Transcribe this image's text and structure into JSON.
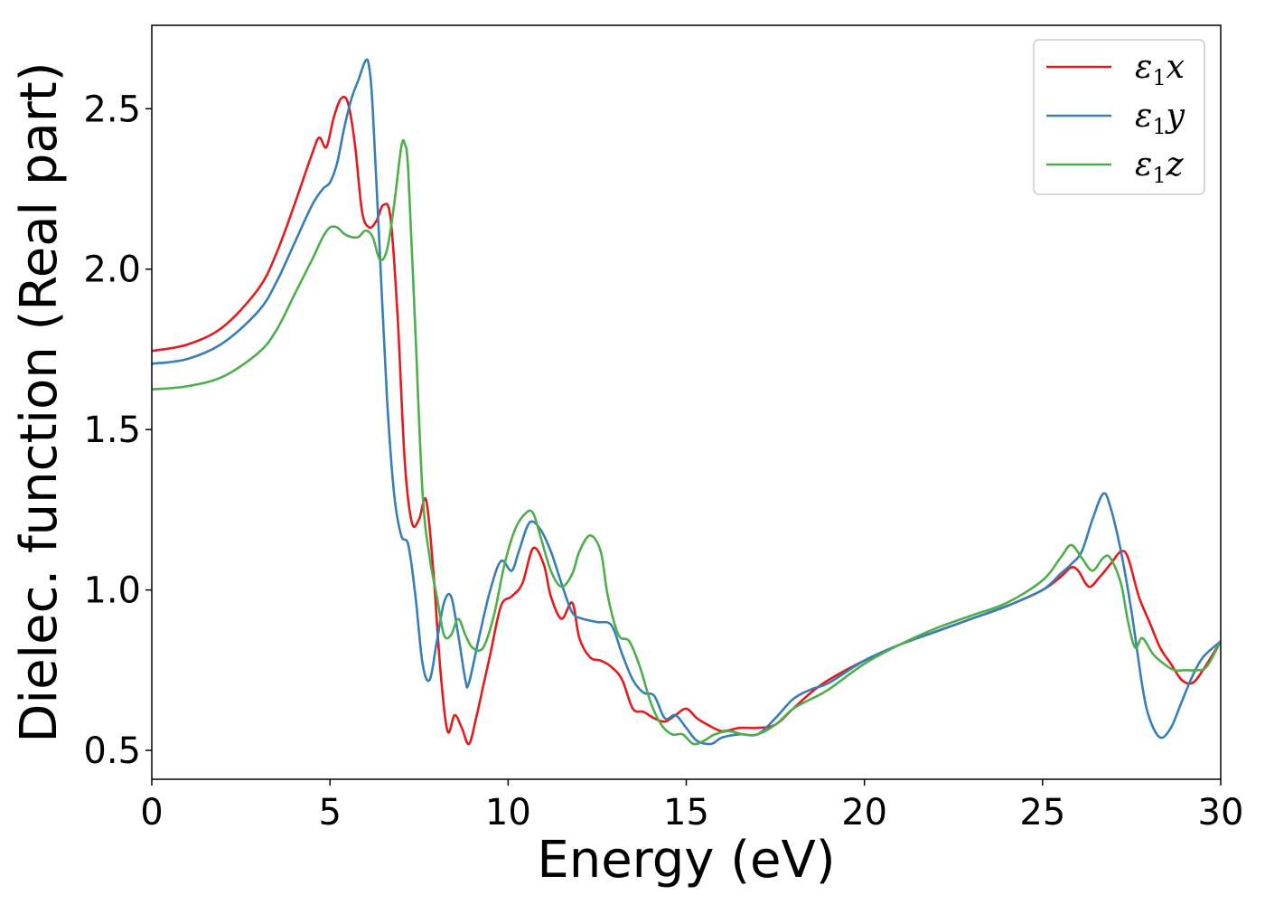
{
  "chart_data": {
    "type": "line",
    "title": "",
    "xlabel": "Energy (eV)",
    "ylabel": "Dielec. function (Real part)",
    "xlim": [
      0,
      30
    ],
    "ylim": [
      0.41,
      2.76
    ],
    "xticks": [
      0,
      5,
      10,
      15,
      20,
      25,
      30
    ],
    "yticks": [
      0.5,
      1.0,
      1.5,
      2.0,
      2.5
    ],
    "xtick_labels": [
      "0",
      "5",
      "10",
      "15",
      "20",
      "25",
      "30"
    ],
    "ytick_labels": [
      "0.5",
      "1.0",
      "1.5",
      "2.0",
      "2.5"
    ],
    "grid": false,
    "legend_position": "top-right",
    "series": [
      {
        "name": "ε₁x",
        "legend_base": "ε",
        "legend_sub": "1",
        "legend_tail": "x",
        "color": "#e41a1c",
        "x": [
          0,
          1,
          2,
          3,
          3.5,
          4,
          4.5,
          4.7,
          4.9,
          5.1,
          5.3,
          5.5,
          5.7,
          5.9,
          6.1,
          6.3,
          6.5,
          6.7,
          6.9,
          7.1,
          7.3,
          7.5,
          7.7,
          7.9,
          8.1,
          8.3,
          8.5,
          8.7,
          8.9,
          9.1,
          9.3,
          9.5,
          9.8,
          10.1,
          10.4,
          10.7,
          11.0,
          11.2,
          11.5,
          11.8,
          12.0,
          12.3,
          12.6,
          12.9,
          13.2,
          13.5,
          13.8,
          14.1,
          14.4,
          14.7,
          15.0,
          15.3,
          15.6,
          16.0,
          16.5,
          17.0,
          17.5,
          18.0,
          18.5,
          19.0,
          20.0,
          21.0,
          22.0,
          23.0,
          24.0,
          25.0,
          25.5,
          25.8,
          26.0,
          26.3,
          26.6,
          26.9,
          27.2,
          27.4,
          27.7,
          28.0,
          28.3,
          28.6,
          28.9,
          29.2,
          29.5,
          30.0
        ],
        "values": [
          1.745,
          1.765,
          1.82,
          1.94,
          2.05,
          2.2,
          2.36,
          2.41,
          2.38,
          2.47,
          2.53,
          2.52,
          2.39,
          2.18,
          2.13,
          2.15,
          2.2,
          2.16,
          1.85,
          1.4,
          1.21,
          1.22,
          1.28,
          1.06,
          0.75,
          0.56,
          0.61,
          0.57,
          0.52,
          0.6,
          0.7,
          0.8,
          0.95,
          0.98,
          1.02,
          1.13,
          1.08,
          0.98,
          0.91,
          0.96,
          0.85,
          0.79,
          0.78,
          0.76,
          0.72,
          0.63,
          0.62,
          0.6,
          0.59,
          0.61,
          0.63,
          0.6,
          0.58,
          0.56,
          0.57,
          0.57,
          0.58,
          0.63,
          0.68,
          0.72,
          0.78,
          0.83,
          0.87,
          0.91,
          0.95,
          1.0,
          1.04,
          1.07,
          1.06,
          1.01,
          1.04,
          1.08,
          1.12,
          1.1,
          0.98,
          0.9,
          0.82,
          0.77,
          0.72,
          0.71,
          0.75,
          0.84
        ]
      },
      {
        "name": "ε₁y",
        "legend_base": "ε",
        "legend_sub": "1",
        "legend_tail": "y",
        "color": "#377eb8",
        "x": [
          0,
          1,
          2,
          3,
          3.5,
          4,
          4.5,
          4.8,
          5.0,
          5.2,
          5.4,
          5.6,
          5.8,
          6.0,
          6.1,
          6.2,
          6.4,
          6.6,
          6.8,
          7.0,
          7.2,
          7.4,
          7.6,
          7.8,
          8.0,
          8.2,
          8.4,
          8.6,
          8.8,
          8.9,
          9.2,
          9.5,
          9.8,
          10.1,
          10.3,
          10.6,
          10.9,
          11.2,
          11.5,
          11.8,
          12.1,
          12.5,
          12.9,
          13.2,
          13.5,
          13.8,
          14.1,
          14.4,
          14.7,
          15.0,
          15.3,
          15.7,
          16.0,
          16.5,
          17.0,
          17.5,
          18.0,
          18.5,
          19.0,
          20.0,
          21.0,
          22.0,
          23.0,
          24.0,
          25.0,
          25.5,
          25.8,
          26.1,
          26.4,
          26.7,
          26.9,
          27.2,
          27.5,
          27.8,
          28.0,
          28.3,
          28.6,
          28.9,
          29.2,
          29.5,
          30.0
        ],
        "values": [
          1.705,
          1.72,
          1.77,
          1.87,
          1.96,
          2.08,
          2.2,
          2.25,
          2.27,
          2.33,
          2.44,
          2.53,
          2.59,
          2.65,
          2.63,
          2.5,
          2.05,
          1.6,
          1.3,
          1.17,
          1.14,
          0.98,
          0.77,
          0.72,
          0.84,
          0.96,
          0.98,
          0.86,
          0.72,
          0.71,
          0.86,
          1.0,
          1.09,
          1.06,
          1.12,
          1.21,
          1.19,
          1.12,
          1.02,
          0.93,
          0.91,
          0.9,
          0.89,
          0.8,
          0.72,
          0.68,
          0.67,
          0.6,
          0.61,
          0.57,
          0.53,
          0.52,
          0.54,
          0.55,
          0.55,
          0.6,
          0.66,
          0.69,
          0.71,
          0.78,
          0.83,
          0.87,
          0.91,
          0.95,
          1.0,
          1.05,
          1.08,
          1.12,
          1.22,
          1.3,
          1.26,
          1.12,
          0.93,
          0.7,
          0.6,
          0.54,
          0.57,
          0.65,
          0.73,
          0.79,
          0.84
        ]
      },
      {
        "name": "ε₁z",
        "legend_base": "ε",
        "legend_sub": "1",
        "legend_tail": "z",
        "color": "#4daf4a",
        "x": [
          0,
          1,
          2,
          3,
          3.5,
          4,
          4.5,
          4.8,
          5.0,
          5.2,
          5.4,
          5.6,
          5.8,
          6.0,
          6.2,
          6.4,
          6.6,
          6.8,
          7.0,
          7.1,
          7.2,
          7.4,
          7.6,
          7.8,
          8.0,
          8.2,
          8.4,
          8.6,
          8.8,
          9.0,
          9.3,
          9.6,
          9.9,
          10.2,
          10.5,
          10.7,
          10.9,
          11.2,
          11.5,
          11.8,
          12.0,
          12.3,
          12.6,
          12.8,
          13.1,
          13.4,
          13.7,
          14.0,
          14.3,
          14.6,
          14.9,
          15.2,
          15.5,
          15.8,
          16.2,
          16.6,
          17.0,
          17.5,
          18.0,
          18.5,
          19.0,
          20.0,
          21.0,
          22.0,
          23.0,
          24.0,
          25.0,
          25.5,
          25.8,
          26.1,
          26.4,
          26.7,
          26.9,
          27.2,
          27.4,
          27.6,
          27.8,
          28.1,
          28.4,
          28.7,
          29.0,
          29.3,
          29.6,
          30.0
        ],
        "values": [
          1.625,
          1.635,
          1.665,
          1.74,
          1.81,
          1.92,
          2.03,
          2.1,
          2.13,
          2.13,
          2.11,
          2.1,
          2.1,
          2.12,
          2.1,
          2.03,
          2.06,
          2.2,
          2.38,
          2.39,
          2.3,
          1.8,
          1.3,
          1.1,
          0.98,
          0.86,
          0.86,
          0.91,
          0.86,
          0.82,
          0.82,
          0.92,
          1.08,
          1.19,
          1.24,
          1.24,
          1.17,
          1.06,
          1.01,
          1.05,
          1.12,
          1.17,
          1.12,
          0.98,
          0.86,
          0.84,
          0.76,
          0.65,
          0.58,
          0.55,
          0.55,
          0.52,
          0.53,
          0.55,
          0.56,
          0.55,
          0.55,
          0.58,
          0.63,
          0.66,
          0.69,
          0.77,
          0.83,
          0.88,
          0.92,
          0.96,
          1.03,
          1.1,
          1.14,
          1.1,
          1.06,
          1.1,
          1.1,
          1.02,
          0.9,
          0.82,
          0.85,
          0.8,
          0.77,
          0.75,
          0.75,
          0.75,
          0.76,
          0.84
        ]
      }
    ]
  }
}
